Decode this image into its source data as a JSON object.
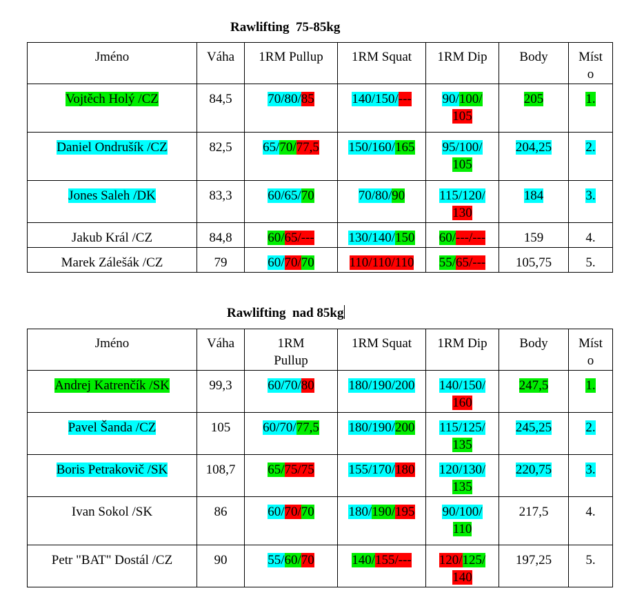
{
  "tables": [
    {
      "title": "Rawlifting  75-85kg",
      "headers": {
        "name": "Jméno",
        "weight": "Váha",
        "pullup_lines": [
          "1RM Pullup"
        ],
        "squat": "1RM Squat",
        "dip": "1RM Dip",
        "points": "Body",
        "place_lines": [
          "Míst",
          "o"
        ]
      },
      "rows": [
        {
          "name": {
            "text": "Vojtěch Holý /CZ",
            "color": "#00ee00"
          },
          "weight": "84,5",
          "pullup": [
            [
              {
                "t": "70/80/",
                "c": "#00ffff"
              },
              {
                "t": "85",
                "c": "#ff0000"
              }
            ]
          ],
          "squat": [
            [
              {
                "t": "140/150/",
                "c": "#00ffff"
              },
              {
                "t": "---",
                "c": "#ff0000"
              }
            ]
          ],
          "dip": [
            [
              {
                "t": "90/",
                "c": "#00ffff"
              },
              {
                "t": "100/",
                "c": "#00ee00"
              }
            ],
            [
              {
                "t": "105",
                "c": "#ff0000"
              }
            ]
          ],
          "points": {
            "text": "205",
            "color": "#00ee00"
          },
          "place": {
            "text": "1.",
            "color": "#00ee00"
          }
        },
        {
          "name": {
            "text": "Daniel Ondrušík /CZ",
            "color": "#00ffff"
          },
          "weight": "82,5",
          "pullup": [
            [
              {
                "t": "65/",
                "c": "#00ffff"
              },
              {
                "t": "70/",
                "c": "#00ee00"
              },
              {
                "t": "77,5",
                "c": "#ff0000"
              }
            ]
          ],
          "squat": [
            [
              {
                "t": "150/160/",
                "c": "#00ffff"
              },
              {
                "t": "165",
                "c": "#00ee00"
              }
            ]
          ],
          "dip": [
            [
              {
                "t": "95/100/",
                "c": "#00ffff"
              }
            ],
            [
              {
                "t": "105",
                "c": "#00ee00"
              }
            ]
          ],
          "points": {
            "text": "204,25",
            "color": "#00ffff"
          },
          "place": {
            "text": "2.",
            "color": "#00ffff"
          }
        },
        {
          "name": {
            "text": "Jones Saleh /DK",
            "color": "#00ffff"
          },
          "weight": "83,3",
          "pullup": [
            [
              {
                "t": "60/65/",
                "c": "#00ffff"
              },
              {
                "t": "70",
                "c": "#00ee00"
              }
            ]
          ],
          "squat": [
            [
              {
                "t": "70/80/",
                "c": "#00ffff"
              },
              {
                "t": "90",
                "c": "#00ee00"
              }
            ]
          ],
          "dip": [
            [
              {
                "t": "115/120/",
                "c": "#00ffff"
              }
            ],
            [
              {
                "t": "130",
                "c": "#ff0000"
              }
            ]
          ],
          "points": {
            "text": "184",
            "color": "#00ffff"
          },
          "place": {
            "text": "3.",
            "color": "#00ffff"
          }
        },
        {
          "name": {
            "text": "Jakub Král /CZ",
            "color": ""
          },
          "weight": "84,8",
          "pullup": [
            [
              {
                "t": "60/",
                "c": "#00ee00"
              },
              {
                "t": "65/---",
                "c": "#ff0000"
              }
            ]
          ],
          "squat": [
            [
              {
                "t": "130/140/",
                "c": "#00ffff"
              },
              {
                "t": "150",
                "c": "#00ee00"
              }
            ]
          ],
          "dip": [
            [
              {
                "t": "60/",
                "c": "#00ee00"
              },
              {
                "t": "---/---",
                "c": "#ff0000"
              }
            ]
          ],
          "points": {
            "text": "159",
            "color": ""
          },
          "place": {
            "text": "4.",
            "color": ""
          }
        },
        {
          "name": {
            "text": "Marek Zálešák /CZ",
            "color": ""
          },
          "weight": "79",
          "pullup": [
            [
              {
                "t": "60/",
                "c": "#00ffff"
              },
              {
                "t": "70/",
                "c": "#ff0000"
              },
              {
                "t": "70",
                "c": "#00ee00"
              }
            ]
          ],
          "squat": [
            [
              {
                "t": "110/110/110",
                "c": "#ff0000"
              }
            ]
          ],
          "dip": [
            [
              {
                "t": "55/",
                "c": "#00ee00"
              },
              {
                "t": "65/---",
                "c": "#ff0000"
              }
            ]
          ],
          "points": {
            "text": "105,75",
            "color": ""
          },
          "place": {
            "text": "5.",
            "color": ""
          }
        }
      ]
    },
    {
      "title": "Rawlifting  nad 85kg",
      "headers": {
        "name": "Jméno",
        "weight": "Váha",
        "pullup_lines": [
          "1RM",
          "Pullup"
        ],
        "squat": "1RM Squat",
        "dip": "1RM Dip",
        "points": "Body",
        "place_lines": [
          "Míst",
          "o"
        ]
      },
      "rows": [
        {
          "name": {
            "text": "Andrej Katrenčík  /SK",
            "color": "#00ee00"
          },
          "weight": "99,3",
          "pullup": [
            [
              {
                "t": "60/70/",
                "c": "#00ffff"
              },
              {
                "t": "80",
                "c": "#ff0000"
              }
            ]
          ],
          "squat": [
            [
              {
                "t": "180/190/200",
                "c": "#00ffff"
              }
            ]
          ],
          "dip": [
            [
              {
                "t": "140/150/",
                "c": "#00ffff"
              }
            ],
            [
              {
                "t": "160",
                "c": "#ff0000"
              }
            ]
          ],
          "points": {
            "text": "247,5",
            "color": "#00ee00"
          },
          "place": {
            "text": "1.",
            "color": "#00ee00"
          }
        },
        {
          "name": {
            "text": "Pavel Šanda /CZ",
            "color": "#00ffff"
          },
          "weight": "105",
          "pullup": [
            [
              {
                "t": "60/70/",
                "c": "#00ffff"
              },
              {
                "t": "77,5",
                "c": "#00ee00"
              }
            ]
          ],
          "squat": [
            [
              {
                "t": "180/190/",
                "c": "#00ffff"
              },
              {
                "t": "200",
                "c": "#00ee00"
              }
            ]
          ],
          "dip": [
            [
              {
                "t": "115/125/",
                "c": "#00ffff"
              }
            ],
            [
              {
                "t": "135",
                "c": "#00ee00"
              }
            ]
          ],
          "points": {
            "text": "245,25",
            "color": "#00ffff"
          },
          "place": {
            "text": "2.",
            "color": "#00ffff"
          }
        },
        {
          "name": {
            "text": "Boris Petrakovič /SK",
            "color": "#00ffff"
          },
          "weight": "108,7",
          "pullup": [
            [
              {
                "t": "65/",
                "c": "#00ee00"
              },
              {
                "t": "75/75",
                "c": "#ff0000"
              }
            ]
          ],
          "squat": [
            [
              {
                "t": "155/170/",
                "c": "#00ffff"
              },
              {
                "t": "180",
                "c": "#ff0000"
              }
            ]
          ],
          "dip": [
            [
              {
                "t": "120/130/",
                "c": "#00ffff"
              }
            ],
            [
              {
                "t": "135",
                "c": "#00ee00"
              }
            ]
          ],
          "points": {
            "text": "220,75",
            "color": "#00ffff"
          },
          "place": {
            "text": "3.",
            "color": "#00ffff"
          }
        },
        {
          "name": {
            "text": "Ivan Sokol /SK",
            "color": ""
          },
          "weight": "86",
          "pullup": [
            [
              {
                "t": "60/",
                "c": "#00ffff"
              },
              {
                "t": "70/",
                "c": "#ff0000"
              },
              {
                "t": "70",
                "c": "#00ee00"
              }
            ]
          ],
          "squat": [
            [
              {
                "t": "180/",
                "c": "#00ffff"
              },
              {
                "t": "190/",
                "c": "#00ee00"
              },
              {
                "t": "195",
                "c": "#ff0000"
              }
            ]
          ],
          "dip": [
            [
              {
                "t": "90/100/",
                "c": "#00ffff"
              }
            ],
            [
              {
                "t": "110",
                "c": "#00ee00"
              }
            ]
          ],
          "points": {
            "text": "217,5",
            "color": ""
          },
          "place": {
            "text": "4.",
            "color": ""
          }
        },
        {
          "name": {
            "text": "Petr \"BAT\" Dostál /CZ",
            "color": ""
          },
          "weight": "90",
          "pullup": [
            [
              {
                "t": "55/",
                "c": "#00ffff"
              },
              {
                "t": "60/",
                "c": "#00ee00"
              },
              {
                "t": "70",
                "c": "#ff0000"
              }
            ]
          ],
          "squat": [
            [
              {
                "t": "140/",
                "c": "#00ee00"
              },
              {
                "t": "155/---",
                "c": "#ff0000"
              }
            ]
          ],
          "dip": [
            [
              {
                "t": "120/",
                "c": "#ff0000"
              },
              {
                "t": "125/",
                "c": "#00ee00"
              }
            ],
            [
              {
                "t": "140",
                "c": "#ff0000"
              }
            ]
          ],
          "points": {
            "text": "197,25",
            "color": ""
          },
          "place": {
            "text": "5.",
            "color": ""
          }
        }
      ]
    }
  ]
}
